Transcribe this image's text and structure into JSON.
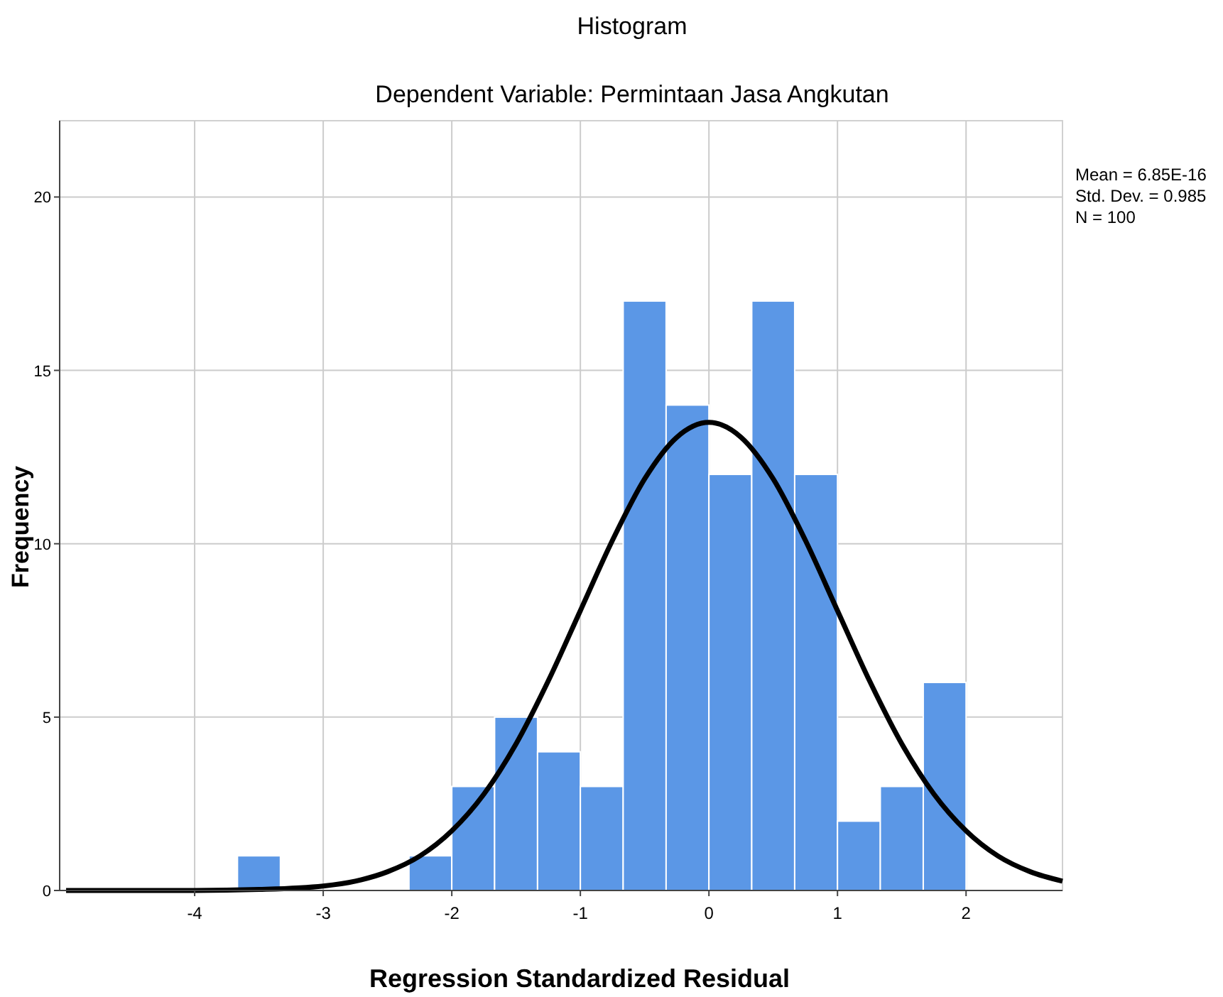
{
  "chart_data": {
    "type": "histogram",
    "title": "Histogram",
    "subtitle": "Dependent Variable: Permintaan Jasa Angkutan",
    "xlabel": "Regression Standardized Residual",
    "ylabel": "Frequency",
    "annotations": [
      "Mean = 6.85E-16",
      "Std. Dev. = 0.985",
      "N = 100"
    ],
    "xlim": [
      -5.05,
      2.75
    ],
    "xticks": [
      -4,
      -3,
      -2,
      -1,
      0,
      1,
      2
    ],
    "ylim": [
      0,
      22.2
    ],
    "yticks": [
      0,
      5,
      10,
      15,
      20
    ],
    "grid": true,
    "series": [
      {
        "color": "#5b97e6",
        "bins": [
          -3.667,
          -3.333,
          -3,
          -2.667,
          -2.333,
          -2,
          -1.667,
          -1.333,
          -1,
          -0.667,
          -0.333,
          0,
          0.333,
          0.667,
          1,
          1.333,
          1.667,
          2
        ],
        "values": [
          1,
          0,
          0,
          0,
          1,
          3,
          5,
          4,
          3,
          17,
          14,
          12,
          17,
          12,
          2,
          3,
          6
        ]
      },
      {
        "type": "line",
        "color": "#000000",
        "line_style": "solid",
        "x": [
          -5,
          -4.5,
          -4,
          -3.5,
          -3,
          -2.75,
          -2.5,
          -2.25,
          -2,
          -1.75,
          -1.5,
          -1.25,
          -1,
          -0.75,
          -0.5,
          -0.25,
          0,
          0.25,
          0.5,
          0.75,
          1,
          1.25,
          1.5,
          1.75,
          2,
          2.25,
          2.5,
          2.75
        ],
        "values": [
          0,
          0,
          0,
          0.03,
          0.13,
          0.27,
          0.54,
          0.99,
          1.72,
          2.78,
          4.23,
          6.04,
          8.07,
          10.1,
          11.87,
          13.07,
          13.5,
          13.07,
          11.87,
          10.1,
          8.07,
          6.04,
          4.23,
          2.78,
          1.72,
          0.99,
          0.54,
          0.27
        ]
      }
    ]
  }
}
